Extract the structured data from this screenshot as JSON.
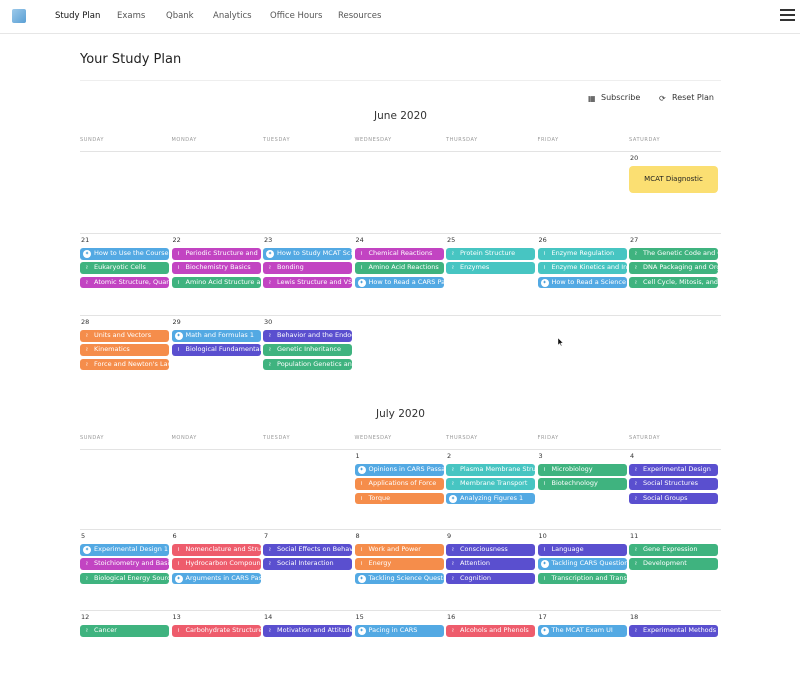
{
  "nav": {
    "items": [
      "Study Plan",
      "Exams",
      "Qbank",
      "Analytics",
      "Office Hours",
      "Resources"
    ],
    "active": "Study Plan"
  },
  "page": {
    "title": "Your Study Plan",
    "subscribe_label": "Subscribe",
    "reset_label": "Reset Plan"
  },
  "colors": {
    "blue": "#53a9e3",
    "magenta": "#c244c2",
    "green": "#3fb37f",
    "teal": "#47c5c2",
    "orange": "#f58d4b",
    "indigo": "#5a4fcf",
    "red": "#ee5c6c",
    "diagnostic": "#fbdf72"
  },
  "weekdays": [
    "SUNDAY",
    "MONDAY",
    "TUESDAY",
    "WEDNESDAY",
    "THURSDAY",
    "FRIDAY",
    "SATURDAY"
  ],
  "months": [
    {
      "title": "June 2020",
      "weeks": [
        [
          null,
          null,
          null,
          null,
          null,
          null,
          {
            "day": "20",
            "diagnostic": "MCAT Diagnostic",
            "events": []
          }
        ],
        [
          {
            "day": "21",
            "events": [
              {
                "t": "How to Use the Course",
                "c": "blue",
                "i": "bulb"
              },
              {
                "t": "Eukaryotic Cells",
                "c": "green",
                "i": "dna"
              },
              {
                "t": "Atomic Structure, Quantum",
                "c": "magenta",
                "i": "flask"
              }
            ]
          },
          {
            "day": "22",
            "events": [
              {
                "t": "Periodic Structure and",
                "c": "magenta",
                "i": "flask"
              },
              {
                "t": "Biochemistry Basics",
                "c": "magenta",
                "i": "flask"
              },
              {
                "t": "Amino Acid Structure and",
                "c": "green",
                "i": "dna"
              }
            ]
          },
          {
            "day": "23",
            "events": [
              {
                "t": "How to Study MCAT Sci",
                "c": "blue",
                "i": "bulb"
              },
              {
                "t": "Bonding",
                "c": "magenta",
                "i": "flask"
              },
              {
                "t": "Lewis Structure and VSEPR",
                "c": "magenta",
                "i": "flask"
              }
            ]
          },
          {
            "day": "24",
            "events": [
              {
                "t": "Chemical Reactions",
                "c": "magenta",
                "i": "flask"
              },
              {
                "t": "Amino Acid Reactions",
                "c": "green",
                "i": "dna"
              },
              {
                "t": "How to Read a CARS Pa",
                "c": "blue",
                "i": "bulb"
              }
            ]
          },
          {
            "day": "25",
            "events": [
              {
                "t": "Protein Structure",
                "c": "teal",
                "i": "dna"
              },
              {
                "t": "Enzymes",
                "c": "teal",
                "i": "dna"
              }
            ]
          },
          {
            "day": "26",
            "events": [
              {
                "t": "Enzyme Regulation",
                "c": "teal",
                "i": "dna"
              },
              {
                "t": "Enzyme Kinetics and Inhi",
                "c": "teal",
                "i": "dna"
              },
              {
                "t": "How to Read a Science",
                "c": "blue",
                "i": "bulb"
              }
            ]
          },
          {
            "day": "27",
            "events": [
              {
                "t": "The Genetic Code and C",
                "c": "green",
                "i": "dna"
              },
              {
                "t": "DNA Packaging and Org",
                "c": "green",
                "i": "dna"
              },
              {
                "t": "Cell Cycle, Mitosis, and",
                "c": "green",
                "i": "dna"
              }
            ]
          }
        ],
        [
          {
            "day": "28",
            "events": [
              {
                "t": "Units and Vectors",
                "c": "orange",
                "i": "atom"
              },
              {
                "t": "Kinematics",
                "c": "orange",
                "i": "atom"
              },
              {
                "t": "Force and Newton's Law",
                "c": "orange",
                "i": "atom"
              }
            ]
          },
          {
            "day": "29",
            "events": [
              {
                "t": "Math and Formulas 1",
                "c": "blue",
                "i": "bulb"
              },
              {
                "t": "Biological Fundamentals",
                "c": "indigo",
                "i": "brain"
              }
            ]
          },
          {
            "day": "30",
            "events": [
              {
                "t": "Behavior and the Endoc",
                "c": "indigo",
                "i": "brain"
              },
              {
                "t": "Genetic Inheritance",
                "c": "green",
                "i": "dna"
              },
              {
                "t": "Population Genetics an",
                "c": "green",
                "i": "dna"
              }
            ]
          },
          null,
          null,
          null,
          null
        ]
      ]
    },
    {
      "title": "July 2020",
      "weeks": [
        [
          null,
          null,
          null,
          {
            "day": "1",
            "events": [
              {
                "t": "Opinions in CARS Passa",
                "c": "blue",
                "i": "bulb"
              },
              {
                "t": "Applications of Force",
                "c": "orange",
                "i": "atom"
              },
              {
                "t": "Torque",
                "c": "orange",
                "i": "atom"
              }
            ]
          },
          {
            "day": "2",
            "events": [
              {
                "t": "Plasma Membrane Struct",
                "c": "teal",
                "i": "dna"
              },
              {
                "t": "Membrane Transport",
                "c": "teal",
                "i": "dna"
              },
              {
                "t": "Analyzing Figures 1",
                "c": "blue",
                "i": "bulb"
              }
            ]
          },
          {
            "day": "3",
            "events": [
              {
                "t": "Microbiology",
                "c": "green",
                "i": "dna"
              },
              {
                "t": "Biotechnology",
                "c": "green",
                "i": "dna"
              }
            ]
          },
          {
            "day": "4",
            "events": [
              {
                "t": "Experimental Design",
                "c": "indigo",
                "i": "brain"
              },
              {
                "t": "Social Structures",
                "c": "indigo",
                "i": "brain"
              },
              {
                "t": "Social Groups",
                "c": "indigo",
                "i": "brain"
              }
            ]
          }
        ],
        [
          {
            "day": "5",
            "events": [
              {
                "t": "Experimental Design 1",
                "c": "blue",
                "i": "bulb"
              },
              {
                "t": "Stoichiometry and Basic",
                "c": "magenta",
                "i": "flask"
              },
              {
                "t": "Biological Energy Sourc",
                "c": "green",
                "i": "dna"
              }
            ]
          },
          {
            "day": "6",
            "events": [
              {
                "t": "Nomenclature and Struc",
                "c": "red",
                "i": "flask"
              },
              {
                "t": "Hydrocarbon Compounds",
                "c": "red",
                "i": "flask"
              },
              {
                "t": "Arguments in CARS Pas",
                "c": "blue",
                "i": "bulb"
              }
            ]
          },
          {
            "day": "7",
            "events": [
              {
                "t": "Social Effects on Behavi",
                "c": "indigo",
                "i": "brain"
              },
              {
                "t": "Social Interaction",
                "c": "indigo",
                "i": "brain"
              }
            ]
          },
          {
            "day": "8",
            "events": [
              {
                "t": "Work and Power",
                "c": "orange",
                "i": "atom"
              },
              {
                "t": "Energy",
                "c": "orange",
                "i": "atom"
              },
              {
                "t": "Tackling Science Questi",
                "c": "blue",
                "i": "bulb"
              }
            ]
          },
          {
            "day": "9",
            "events": [
              {
                "t": "Consciousness",
                "c": "indigo",
                "i": "brain"
              },
              {
                "t": "Attention",
                "c": "indigo",
                "i": "brain"
              },
              {
                "t": "Cognition",
                "c": "indigo",
                "i": "brain"
              }
            ]
          },
          {
            "day": "10",
            "events": [
              {
                "t": "Language",
                "c": "indigo",
                "i": "brain"
              },
              {
                "t": "Tackling CARS Question",
                "c": "blue",
                "i": "bulb"
              },
              {
                "t": "Transcription and Trans",
                "c": "green",
                "i": "dna"
              }
            ]
          },
          {
            "day": "11",
            "events": [
              {
                "t": "Gene Expression",
                "c": "green",
                "i": "dna"
              },
              {
                "t": "Development",
                "c": "green",
                "i": "dna"
              }
            ]
          }
        ],
        [
          {
            "day": "12",
            "events": [
              {
                "t": "Cancer",
                "c": "green",
                "i": "dna"
              }
            ]
          },
          {
            "day": "13",
            "events": [
              {
                "t": "Carbohydrate Structure",
                "c": "red",
                "i": "flask"
              }
            ]
          },
          {
            "day": "14",
            "events": [
              {
                "t": "Motivation and Attitude",
                "c": "indigo",
                "i": "brain"
              }
            ]
          },
          {
            "day": "15",
            "events": [
              {
                "t": "Pacing in CARS",
                "c": "blue",
                "i": "bulb"
              }
            ]
          },
          {
            "day": "16",
            "events": [
              {
                "t": "Alcohols and Phenols",
                "c": "red",
                "i": "flask"
              }
            ]
          },
          {
            "day": "17",
            "events": [
              {
                "t": "The MCAT Exam UI",
                "c": "blue",
                "i": "bulb"
              }
            ]
          },
          {
            "day": "18",
            "events": [
              {
                "t": "Experimental Methods",
                "c": "indigo",
                "i": "brain"
              }
            ]
          }
        ]
      ]
    }
  ]
}
